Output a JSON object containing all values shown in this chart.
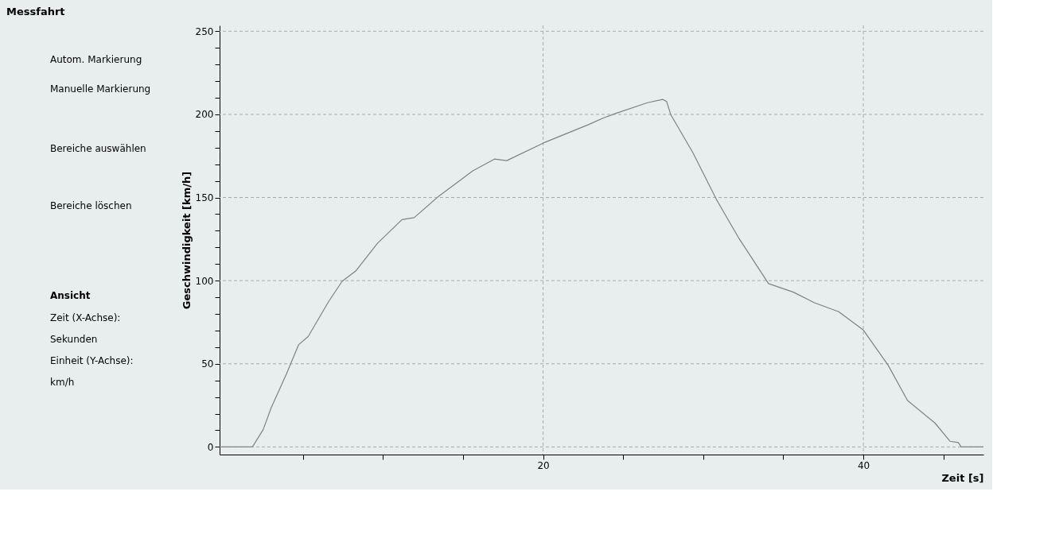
{
  "chart_data": {
    "type": "line",
    "title": "Messfahrt",
    "xlabel": "Zeit [s]",
    "ylabel": "Geschwindigkeit [km/h]",
    "annotations": [
      "Autom. Markierung",
      "Manuelle Markierung",
      "Bereiche auswählen",
      "Bereiche löschen",
      "Ansicht",
      "Zeit (X-Achse):",
      "Sekunden",
      "Einheit (Y-Achse):",
      "km/h"
    ],
    "series": [
      {
        "color": "#808080",
        "x": [
          -0.2,
          1.85,
          2.52,
          3.03,
          3.97,
          4.73,
          5.33,
          6.6,
          7.45,
          8.3,
          9.66,
          11.19,
          11.95,
          13.4,
          15.61,
          16.96,
          17.73,
          20.02,
          22.83,
          23.76,
          24.55,
          26.52,
          27.47,
          27.72,
          27.98,
          29.36,
          30.82,
          32.19,
          34.08,
          35.63,
          36.92,
          38.46,
          40.0,
          41.55,
          42.76,
          44.47,
          45.42,
          45.93,
          46.11,
          47.5
        ],
        "values": [
          0,
          0,
          10.4,
          23.7,
          43.8,
          61.4,
          66.4,
          87.3,
          99.6,
          105.8,
          122.5,
          136.7,
          137.9,
          150.1,
          166.0,
          173.1,
          172.2,
          182.8,
          193.8,
          197.8,
          200.6,
          207,
          209,
          207.7,
          199.7,
          176.9,
          148.9,
          126.1,
          98.2,
          93.1,
          86.8,
          81.3,
          70.3,
          49.1,
          27.9,
          14.4,
          3.4,
          2.6,
          0,
          0
        ]
      }
    ],
    "xlim": [
      -0.2,
      47.5
    ],
    "ylim": [
      -4.6,
      253.5
    ],
    "xticks": [
      {
        "value": 5,
        "label": null
      },
      {
        "value": 10,
        "label": null
      },
      {
        "value": 15,
        "label": null
      },
      20,
      {
        "value": 25,
        "label": null
      },
      {
        "value": 30,
        "label": null
      },
      {
        "value": 35,
        "label": null
      },
      40,
      {
        "value": 45,
        "label": null
      }
    ],
    "yticks": [
      0,
      {
        "value": 10,
        "label": null
      },
      {
        "value": 20,
        "label": null
      },
      {
        "value": 30,
        "label": null
      },
      {
        "value": 40,
        "label": null
      },
      50,
      {
        "value": 60,
        "label": null
      },
      {
        "value": 70,
        "label": null
      },
      {
        "value": 80,
        "label": null
      },
      {
        "value": 90,
        "label": null
      },
      100,
      {
        "value": 110,
        "label": null
      },
      {
        "value": 120,
        "label": null
      },
      {
        "value": 130,
        "label": null
      },
      {
        "value": 140,
        "label": null
      },
      150,
      {
        "value": 160,
        "label": null
      },
      {
        "value": 170,
        "label": null
      },
      {
        "value": 180,
        "label": null
      },
      {
        "value": 190,
        "label": null
      },
      200,
      {
        "value": 210,
        "label": null
      },
      {
        "value": 220,
        "label": null
      },
      {
        "value": 230,
        "label": null
      },
      {
        "value": 240,
        "label": null
      },
      250
    ],
    "grid": true,
    "marker": "none",
    "line_style": "solid"
  }
}
